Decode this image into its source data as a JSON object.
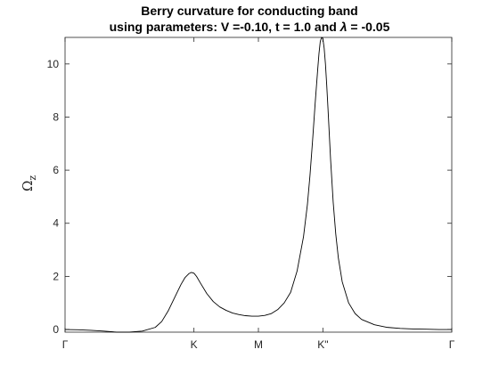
{
  "chart_data": {
    "type": "line",
    "title": "Berry curvature for conducting band",
    "subtitle_prefix": "using parameters: V =-0.10, t = 1.0 and ",
    "subtitle_symbol": "λ",
    "subtitle_suffix": " = -0.05",
    "ylabel": "Ω",
    "ylabel_sub": "z",
    "xlabel": "",
    "xlim": [
      0,
      3
    ],
    "ylim": [
      -0.1,
      11
    ],
    "yticks": [
      0,
      2,
      4,
      6,
      8,
      10
    ],
    "xticks": [
      {
        "pos": 0,
        "label": "Γ"
      },
      {
        "pos": 1,
        "label": "K"
      },
      {
        "pos": 1.5,
        "label": "M"
      },
      {
        "pos": 2,
        "label": "K\""
      },
      {
        "pos": 3,
        "label": "Γ"
      }
    ],
    "grid": false,
    "line_color": "#000000",
    "series": [
      {
        "name": "",
        "x": [
          0,
          0.1,
          0.2,
          0.3,
          0.4,
          0.5,
          0.6,
          0.7,
          0.75,
          0.8,
          0.85,
          0.9,
          0.93,
          0.96,
          0.98,
          1.0,
          1.02,
          1.05,
          1.1,
          1.15,
          1.2,
          1.25,
          1.3,
          1.35,
          1.4,
          1.45,
          1.5,
          1.55,
          1.6,
          1.65,
          1.7,
          1.75,
          1.8,
          1.85,
          1.88,
          1.9,
          1.92,
          1.94,
          1.96,
          1.97,
          1.98,
          1.99,
          2.0,
          2.01,
          2.02,
          2.03,
          2.04,
          2.06,
          2.08,
          2.1,
          2.12,
          2.15,
          2.2,
          2.25,
          2.3,
          2.4,
          2.5,
          2.6,
          2.7,
          2.8,
          2.9,
          3.0
        ],
        "y": [
          0.0,
          -0.01,
          -0.03,
          -0.06,
          -0.1,
          -0.1,
          -0.06,
          0.08,
          0.3,
          0.7,
          1.2,
          1.7,
          1.95,
          2.1,
          2.15,
          2.12,
          2.0,
          1.75,
          1.35,
          1.05,
          0.85,
          0.72,
          0.62,
          0.56,
          0.52,
          0.5,
          0.5,
          0.53,
          0.6,
          0.75,
          1.0,
          1.4,
          2.2,
          3.5,
          4.7,
          5.8,
          7.1,
          8.5,
          9.8,
          10.4,
          10.85,
          11.0,
          10.95,
          10.6,
          10.0,
          9.2,
          8.3,
          6.4,
          4.8,
          3.6,
          2.7,
          1.8,
          1.0,
          0.6,
          0.38,
          0.18,
          0.08,
          0.04,
          0.02,
          0.01,
          0.0,
          0.0
        ]
      }
    ]
  }
}
